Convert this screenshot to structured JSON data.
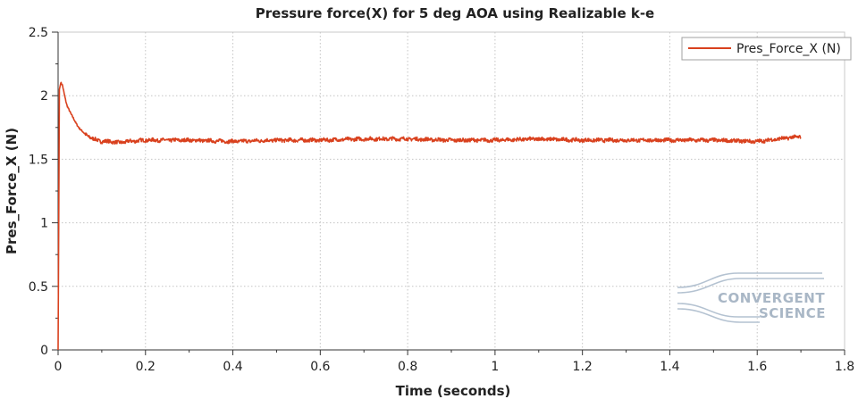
{
  "chart_data": {
    "type": "line",
    "title": "Pressure force(X) for 5 deg AOA using Realizable k-e",
    "xlabel": "Time (seconds)",
    "ylabel": "Pres_Force_X (N)",
    "xlim": [
      0,
      1.8
    ],
    "ylim": [
      0,
      2.5
    ],
    "x_ticks": [
      "0",
      "0.2",
      "0.4",
      "0.6",
      "0.8",
      "1",
      "1.2",
      "1.4",
      "1.6",
      "1.8"
    ],
    "y_ticks": [
      "0",
      "0.5",
      "1",
      "1.5",
      "2",
      "2.5"
    ],
    "grid": true,
    "legend_position": "top-right",
    "series": [
      {
        "name": "Pres_Force_X (N)",
        "color": "#d9411e",
        "x": [
          0,
          0.003,
          0.006,
          0.01,
          0.015,
          0.02,
          0.03,
          0.04,
          0.05,
          0.06,
          0.07,
          0.08,
          0.09,
          0.1,
          0.12,
          0.14,
          0.16,
          0.2,
          0.3,
          0.4,
          0.5,
          0.6,
          0.7,
          0.8,
          0.9,
          1.0,
          1.1,
          1.2,
          1.3,
          1.4,
          1.5,
          1.6,
          1.7
        ],
        "y": [
          0,
          2.05,
          2.1,
          2.08,
          2.0,
          1.93,
          1.85,
          1.79,
          1.74,
          1.7,
          1.68,
          1.66,
          1.65,
          1.64,
          1.64,
          1.63,
          1.64,
          1.65,
          1.65,
          1.64,
          1.65,
          1.65,
          1.66,
          1.66,
          1.65,
          1.65,
          1.66,
          1.65,
          1.65,
          1.65,
          1.65,
          1.64,
          1.68
        ]
      }
    ]
  },
  "watermark": {
    "line1": "CONVERGENT",
    "line2": "SCIENCE"
  }
}
